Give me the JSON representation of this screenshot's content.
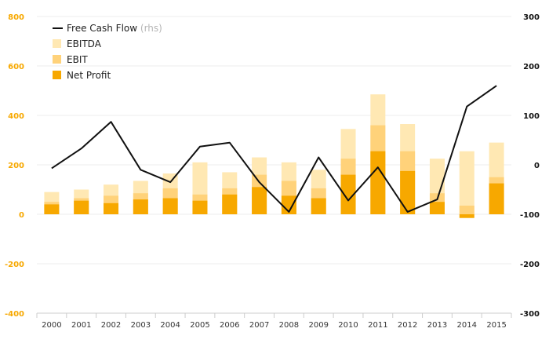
{
  "colors": {
    "ebitda": "#FFE8B3",
    "ebit": "#FFD27A",
    "net_profit": "#F7A800",
    "fcf_line": "#111111",
    "left_axis_text": "#F7A800",
    "grid": "#ECECEC"
  },
  "legend": {
    "fcf": "Free Cash Flow",
    "fcf_suffix": "(rhs)",
    "ebitda": "EBITDA",
    "ebit": "EBIT",
    "net_profit": "Net Profit"
  },
  "chart_data": {
    "type": "bar",
    "categories": [
      "2000",
      "2001",
      "2002",
      "2003",
      "2004",
      "2005",
      "2006",
      "2007",
      "2008",
      "2009",
      "2010",
      "2011",
      "2012",
      "2013",
      "2014",
      "2015"
    ],
    "series": [
      {
        "name": "EBITDA",
        "axis": "left",
        "kind": "bar",
        "values": [
          90,
          100,
          120,
          135,
          165,
          210,
          170,
          230,
          210,
          180,
          345,
          485,
          365,
          225,
          255,
          290
        ]
      },
      {
        "name": "EBIT",
        "axis": "left",
        "kind": "bar",
        "values": [
          50,
          65,
          75,
          85,
          105,
          80,
          105,
          160,
          135,
          105,
          225,
          360,
          255,
          85,
          35,
          150
        ]
      },
      {
        "name": "Net Profit",
        "axis": "left",
        "kind": "bar",
        "values": [
          40,
          55,
          45,
          60,
          65,
          55,
          80,
          110,
          75,
          65,
          160,
          255,
          175,
          50,
          -15,
          125
        ]
      },
      {
        "name": "Free Cash Flow",
        "axis": "right",
        "kind": "line",
        "values": [
          -7,
          33,
          87,
          -10,
          -35,
          37,
          45,
          -35,
          -95,
          15,
          -72,
          -5,
          -95,
          -70,
          118,
          160
        ]
      }
    ],
    "y_left": {
      "ylim": [
        -400,
        800
      ],
      "ticks": [
        -400,
        -200,
        0,
        200,
        400,
        600,
        800
      ]
    },
    "y_right": {
      "ylim": [
        -300,
        300
      ],
      "ticks": [
        -300,
        -200,
        -100,
        0,
        100,
        200,
        300
      ]
    },
    "grid": true,
    "legend_position": "top-left"
  }
}
